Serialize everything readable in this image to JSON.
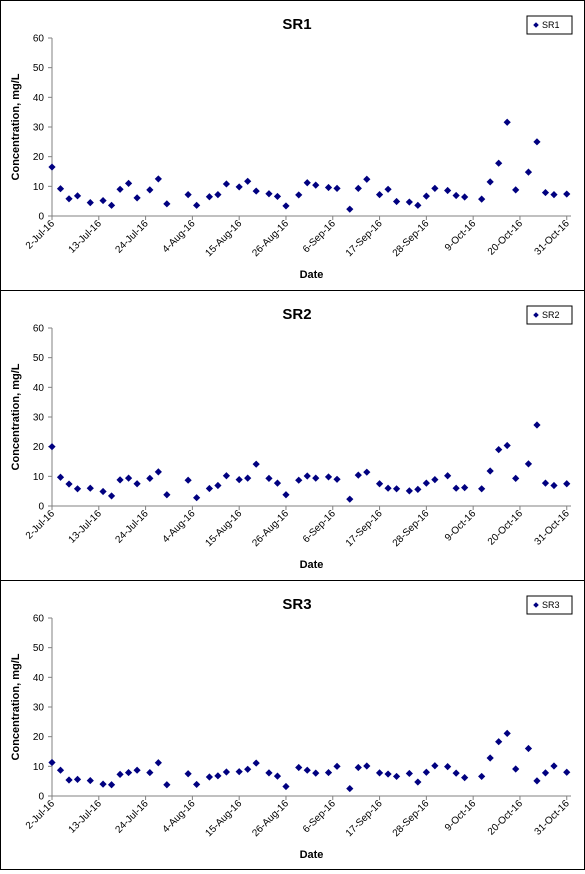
{
  "colors": {
    "marker": "#000080",
    "axis": "#808080",
    "text": "#000000"
  },
  "chart_data": [
    {
      "type": "scatter",
      "title": "SR1",
      "xlabel": "Date",
      "ylabel": "Concentration, mg/L",
      "ylim": [
        0,
        60
      ],
      "yticks": [
        0,
        10,
        20,
        30,
        40,
        50,
        60
      ],
      "xlim": [
        "2016-07-02",
        "2016-11-01"
      ],
      "xticks": [
        "2-Jul-16",
        "13-Jul-16",
        "24-Jul-16",
        "4-Aug-16",
        "15-Aug-16",
        "26-Aug-16",
        "6-Sep-16",
        "17-Sep-16",
        "28-Sep-16",
        "9-Oct-16",
        "20-Oct-16",
        "31-Oct-16"
      ],
      "grid": false,
      "legend_position": "top-right",
      "series": [
        {
          "name": "SR1",
          "marker": "diamond",
          "points": [
            [
              "2016-07-02",
              16.5
            ],
            [
              "2016-07-04",
              9.2
            ],
            [
              "2016-07-06",
              5.8
            ],
            [
              "2016-07-08",
              6.8
            ],
            [
              "2016-07-11",
              4.5
            ],
            [
              "2016-07-14",
              5.2
            ],
            [
              "2016-07-16",
              3.6
            ],
            [
              "2016-07-18",
              9.0
            ],
            [
              "2016-07-20",
              11.0
            ],
            [
              "2016-07-22",
              6.1
            ],
            [
              "2016-07-25",
              8.8
            ],
            [
              "2016-07-27",
              12.5
            ],
            [
              "2016-07-29",
              4.1
            ],
            [
              "2016-08-03",
              7.2
            ],
            [
              "2016-08-05",
              3.6
            ],
            [
              "2016-08-08",
              6.5
            ],
            [
              "2016-08-10",
              7.2
            ],
            [
              "2016-08-12",
              10.8
            ],
            [
              "2016-08-15",
              9.8
            ],
            [
              "2016-08-17",
              11.7
            ],
            [
              "2016-08-19",
              8.4
            ],
            [
              "2016-08-22",
              7.5
            ],
            [
              "2016-08-24",
              6.6
            ],
            [
              "2016-08-26",
              3.4
            ],
            [
              "2016-08-29",
              7.1
            ],
            [
              "2016-08-31",
              11.2
            ],
            [
              "2016-09-02",
              10.4
            ],
            [
              "2016-09-05",
              9.6
            ],
            [
              "2016-09-07",
              9.3
            ],
            [
              "2016-09-10",
              2.3
            ],
            [
              "2016-09-12",
              9.3
            ],
            [
              "2016-09-14",
              12.4
            ],
            [
              "2016-09-17",
              7.2
            ],
            [
              "2016-09-19",
              9.0
            ],
            [
              "2016-09-21",
              4.9
            ],
            [
              "2016-09-24",
              4.7
            ],
            [
              "2016-09-26",
              3.6
            ],
            [
              "2016-09-28",
              6.7
            ],
            [
              "2016-09-30",
              9.3
            ],
            [
              "2016-10-03",
              8.6
            ],
            [
              "2016-10-05",
              6.9
            ],
            [
              "2016-10-07",
              6.4
            ],
            [
              "2016-10-11",
              5.7
            ],
            [
              "2016-10-13",
              11.5
            ],
            [
              "2016-10-15",
              17.8
            ],
            [
              "2016-10-17",
              31.6
            ],
            [
              "2016-10-19",
              8.8
            ],
            [
              "2016-10-22",
              14.8
            ],
            [
              "2016-10-24",
              25.0
            ],
            [
              "2016-10-26",
              7.9
            ],
            [
              "2016-10-28",
              7.2
            ],
            [
              "2016-10-31",
              7.4
            ]
          ]
        }
      ]
    },
    {
      "type": "scatter",
      "title": "SR2",
      "xlabel": "Date",
      "ylabel": "Concentration, mg/L",
      "ylim": [
        0,
        60
      ],
      "yticks": [
        0,
        10,
        20,
        30,
        40,
        50,
        60
      ],
      "xlim": [
        "2016-07-02",
        "2016-11-01"
      ],
      "xticks": [
        "2-Jul-16",
        "13-Jul-16",
        "24-Jul-16",
        "4-Aug-16",
        "15-Aug-16",
        "26-Aug-16",
        "6-Sep-16",
        "17-Sep-16",
        "28-Sep-16",
        "9-Oct-16",
        "20-Oct-16",
        "31-Oct-16"
      ],
      "grid": false,
      "legend_position": "top-right",
      "series": [
        {
          "name": "SR2",
          "marker": "diamond",
          "points": [
            [
              "2016-07-02",
              20.0
            ],
            [
              "2016-07-04",
              9.7
            ],
            [
              "2016-07-06",
              7.4
            ],
            [
              "2016-07-08",
              5.8
            ],
            [
              "2016-07-11",
              6.0
            ],
            [
              "2016-07-14",
              4.9
            ],
            [
              "2016-07-16",
              3.4
            ],
            [
              "2016-07-18",
              8.8
            ],
            [
              "2016-07-20",
              9.4
            ],
            [
              "2016-07-22",
              7.5
            ],
            [
              "2016-07-25",
              9.3
            ],
            [
              "2016-07-27",
              11.5
            ],
            [
              "2016-07-29",
              3.8
            ],
            [
              "2016-08-03",
              8.7
            ],
            [
              "2016-08-05",
              2.8
            ],
            [
              "2016-08-08",
              5.9
            ],
            [
              "2016-08-10",
              6.9
            ],
            [
              "2016-08-12",
              10.2
            ],
            [
              "2016-08-15",
              8.9
            ],
            [
              "2016-08-17",
              9.4
            ],
            [
              "2016-08-19",
              14.1
            ],
            [
              "2016-08-22",
              9.3
            ],
            [
              "2016-08-24",
              7.7
            ],
            [
              "2016-08-26",
              3.8
            ],
            [
              "2016-08-29",
              8.7
            ],
            [
              "2016-08-31",
              10.1
            ],
            [
              "2016-09-02",
              9.4
            ],
            [
              "2016-09-05",
              9.8
            ],
            [
              "2016-09-07",
              9.0
            ],
            [
              "2016-09-10",
              2.3
            ],
            [
              "2016-09-12",
              10.4
            ],
            [
              "2016-09-14",
              11.4
            ],
            [
              "2016-09-17",
              7.5
            ],
            [
              "2016-09-19",
              6.0
            ],
            [
              "2016-09-21",
              5.8
            ],
            [
              "2016-09-24",
              5.1
            ],
            [
              "2016-09-26",
              5.6
            ],
            [
              "2016-09-28",
              7.7
            ],
            [
              "2016-09-30",
              8.9
            ],
            [
              "2016-10-03",
              10.2
            ],
            [
              "2016-10-05",
              6.0
            ],
            [
              "2016-10-07",
              6.2
            ],
            [
              "2016-10-11",
              5.8
            ],
            [
              "2016-10-13",
              11.8
            ],
            [
              "2016-10-15",
              19.0
            ],
            [
              "2016-10-17",
              20.4
            ],
            [
              "2016-10-19",
              9.3
            ],
            [
              "2016-10-22",
              14.2
            ],
            [
              "2016-10-24",
              27.3
            ],
            [
              "2016-10-26",
              7.7
            ],
            [
              "2016-10-28",
              6.9
            ],
            [
              "2016-10-31",
              7.5
            ]
          ]
        }
      ]
    },
    {
      "type": "scatter",
      "title": "SR3",
      "xlabel": "Date",
      "ylabel": "Concentration, mg/L",
      "ylim": [
        0,
        60
      ],
      "yticks": [
        0,
        10,
        20,
        30,
        40,
        50,
        60
      ],
      "xlim": [
        "2016-07-02",
        "2016-11-01"
      ],
      "xticks": [
        "2-Jul-16",
        "13-Jul-16",
        "24-Jul-16",
        "4-Aug-16",
        "15-Aug-16",
        "26-Aug-16",
        "6-Sep-16",
        "17-Sep-16",
        "28-Sep-16",
        "9-Oct-16",
        "20-Oct-16",
        "31-Oct-16"
      ],
      "grid": false,
      "legend_position": "top-right",
      "series": [
        {
          "name": "SR3",
          "marker": "diamond",
          "points": [
            [
              "2016-07-02",
              11.3
            ],
            [
              "2016-07-04",
              8.7
            ],
            [
              "2016-07-06",
              5.4
            ],
            [
              "2016-07-08",
              5.6
            ],
            [
              "2016-07-11",
              5.2
            ],
            [
              "2016-07-14",
              4.0
            ],
            [
              "2016-07-16",
              3.8
            ],
            [
              "2016-07-18",
              7.3
            ],
            [
              "2016-07-20",
              7.9
            ],
            [
              "2016-07-22",
              8.7
            ],
            [
              "2016-07-25",
              7.9
            ],
            [
              "2016-07-27",
              11.2
            ],
            [
              "2016-07-29",
              3.8
            ],
            [
              "2016-08-03",
              7.5
            ],
            [
              "2016-08-05",
              3.9
            ],
            [
              "2016-08-08",
              6.4
            ],
            [
              "2016-08-10",
              6.8
            ],
            [
              "2016-08-12",
              8.1
            ],
            [
              "2016-08-15",
              8.2
            ],
            [
              "2016-08-17",
              9.0
            ],
            [
              "2016-08-19",
              11.1
            ],
            [
              "2016-08-22",
              7.8
            ],
            [
              "2016-08-24",
              6.7
            ],
            [
              "2016-08-26",
              3.2
            ],
            [
              "2016-08-29",
              9.6
            ],
            [
              "2016-08-31",
              8.7
            ],
            [
              "2016-09-02",
              7.7
            ],
            [
              "2016-09-05",
              7.9
            ],
            [
              "2016-09-07",
              10.0
            ],
            [
              "2016-09-10",
              2.5
            ],
            [
              "2016-09-12",
              9.6
            ],
            [
              "2016-09-14",
              10.1
            ],
            [
              "2016-09-17",
              7.8
            ],
            [
              "2016-09-19",
              7.4
            ],
            [
              "2016-09-21",
              6.6
            ],
            [
              "2016-09-24",
              7.6
            ],
            [
              "2016-09-26",
              4.7
            ],
            [
              "2016-09-28",
              8.0
            ],
            [
              "2016-09-30",
              10.2
            ],
            [
              "2016-10-03",
              9.9
            ],
            [
              "2016-10-05",
              7.7
            ],
            [
              "2016-10-07",
              6.2
            ],
            [
              "2016-10-11",
              6.6
            ],
            [
              "2016-10-13",
              12.8
            ],
            [
              "2016-10-15",
              18.3
            ],
            [
              "2016-10-17",
              21.1
            ],
            [
              "2016-10-19",
              9.1
            ],
            [
              "2016-10-22",
              16.0
            ],
            [
              "2016-10-24",
              5.1
            ],
            [
              "2016-10-26",
              7.8
            ],
            [
              "2016-10-28",
              10.1
            ],
            [
              "2016-10-31",
              8.0
            ]
          ]
        }
      ]
    }
  ]
}
